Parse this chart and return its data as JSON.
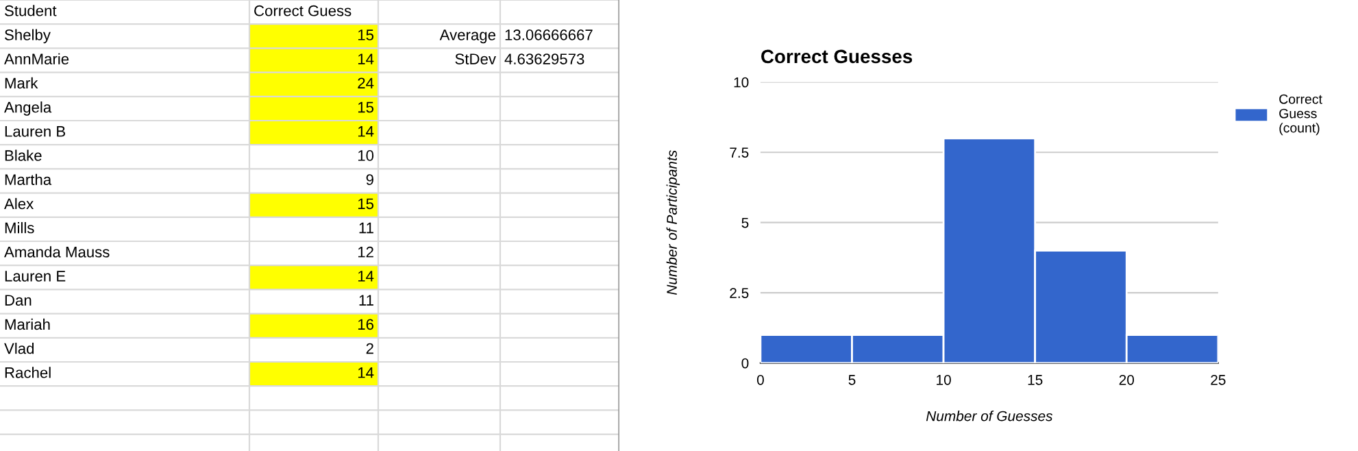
{
  "chart_data": [
    {
      "type": "other",
      "categories": [
        "Shelby",
        "AnnMarie",
        "Mark",
        "Angela",
        "Lauren B",
        "Blake",
        "Martha",
        "Alex",
        "Mills",
        "Amanda Mauss",
        "Lauren E",
        "Dan",
        "Mariah",
        "Vlad",
        "Rachel"
      ],
      "values": [
        15,
        14,
        24,
        15,
        14,
        10,
        9,
        15,
        11,
        12,
        14,
        11,
        16,
        2,
        14
      ],
      "colors": [
        "#ffff00",
        "#ffff00",
        "#ffff00",
        "#ffff00",
        "#ffff00",
        "#ffffff",
        "#ffffff",
        "#ffff00",
        "#ffffff",
        "#ffffff",
        "#ffff00",
        "#ffffff",
        "#ffff00",
        "#ffffff",
        "#ffff00"
      ],
      "data_labels": true,
      "annotations": [
        "Student",
        "Correct Guess",
        "Average",
        "13.06666667",
        "StDev",
        "4.63629573"
      ]
    },
    {
      "type": "histogram",
      "title": "Correct Guesses",
      "xlabel": "Number of Guesses",
      "ylabel": "Number of Participants",
      "bins": [
        0,
        5,
        10,
        15,
        20,
        25
      ],
      "series": [
        {
          "name": "Correct Guess (count)",
          "color": "#3366cc",
          "values": [
            1,
            1,
            8,
            4,
            1
          ]
        }
      ],
      "xlim": [
        0,
        25
      ],
      "xticks": [
        0,
        5,
        10,
        15,
        20,
        25
      ],
      "ylim": [
        0,
        10
      ],
      "yticks": [
        0,
        2.5,
        5,
        7.5,
        10
      ],
      "grid": "y",
      "legend": "top right"
    }
  ]
}
